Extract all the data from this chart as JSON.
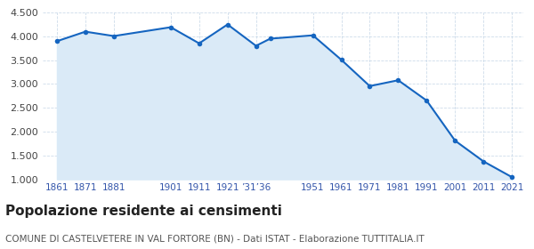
{
  "years": [
    1861,
    1871,
    1881,
    1901,
    1911,
    1921,
    1931,
    1936,
    1951,
    1961,
    1971,
    1981,
    1991,
    2001,
    2011,
    2021
  ],
  "population": [
    3897,
    4097,
    4005,
    4190,
    3852,
    4248,
    3800,
    3950,
    4020,
    3507,
    2955,
    3078,
    2652,
    1810,
    1375,
    1045
  ],
  "ylim": [
    1000,
    4500
  ],
  "y_ticks": [
    1000,
    1500,
    2000,
    2500,
    3000,
    3500,
    4000,
    4500
  ],
  "x_tick_positions": [
    1861,
    1871,
    1881,
    1901,
    1911,
    1921,
    1931,
    1951,
    1961,
    1971,
    1981,
    1991,
    2001,
    2011,
    2021
  ],
  "x_tick_labels": [
    "1861",
    "1871",
    "1881",
    "1901",
    "1911",
    "1921",
    "’31’36",
    "1951",
    "1961",
    "1971",
    "1981",
    "1991",
    "2001",
    "2011",
    "2021"
  ],
  "line_color": "#1565c0",
  "fill_color": "#daeaf7",
  "marker_color": "#1565c0",
  "bg_color": "#ffffff",
  "grid_color": "#c8d8e8",
  "title": "Popolazione residente ai censimenti",
  "subtitle": "COMUNE DI CASTELVETERE IN VAL FORTORE (BN) - Dati ISTAT - Elaborazione TUTTITALIA.IT",
  "title_fontsize": 11,
  "subtitle_fontsize": 7.5,
  "xlim_left": 1856,
  "xlim_right": 2025
}
